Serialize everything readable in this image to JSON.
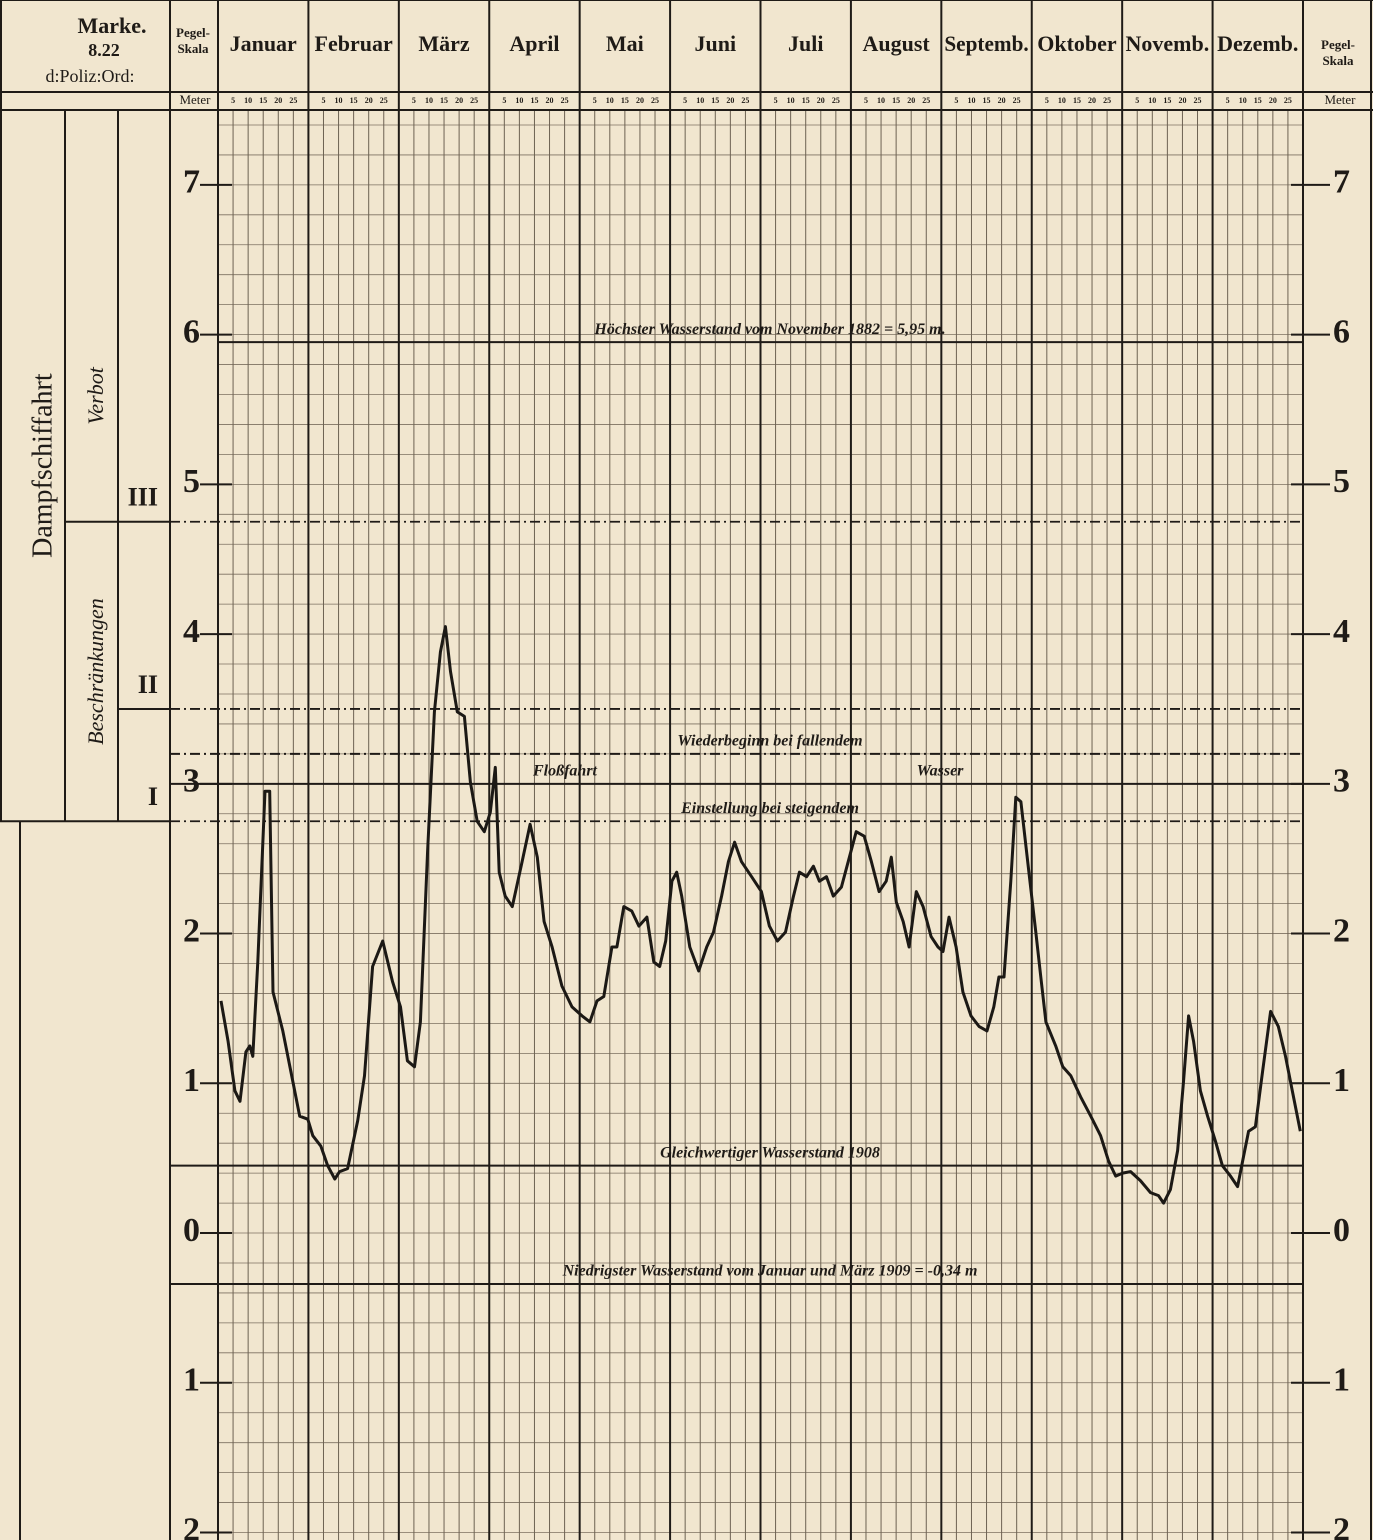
{
  "chart_data": {
    "type": "line",
    "marker": {
      "title": "Marke.",
      "number": "8.22",
      "note": "d:Poliz:Ord:"
    },
    "scale_header": {
      "line1": "Pegel-",
      "line2": "Skala",
      "unit": "Meter"
    },
    "categories": [
      "Januar",
      "Februar",
      "März",
      "April",
      "Mai",
      "Juni",
      "Juli",
      "August",
      "Septemb.",
      "Oktober",
      "Novemb.",
      "Dezemb."
    ],
    "day_ticks": [
      5,
      10,
      15,
      20,
      25
    ],
    "xlim": [
      0,
      365
    ],
    "ylim": [
      -2.05,
      7.5
    ],
    "yticks": [
      7,
      6,
      5,
      4,
      3,
      2,
      1,
      0,
      {
        "value": -1,
        "label": "1"
      },
      {
        "value": -2,
        "label": "2"
      }
    ],
    "grid": true,
    "grid_step": 0.2,
    "shipping": {
      "title": "Dampfschiffahrt",
      "zones": [
        "Verbot",
        "Beschränkungen"
      ],
      "line_style": "dashdot",
      "levels": [
        {
          "label": "III",
          "value": 4.75
        },
        {
          "label": "II",
          "value": 3.5
        },
        {
          "label": "I",
          "value": 2.75
        }
      ]
    },
    "reference_lines": [
      {
        "value": 5.95,
        "style": "solid",
        "label": "Höchster Wasserstand vom November 1882 = 5,95 m."
      },
      {
        "value": 3.2,
        "style": "dashdot",
        "label": "Wiederbeginn bei fallendem"
      },
      {
        "value": 3.0,
        "style": "solid",
        "label": "Floßfahrt",
        "label_right": "Wasser"
      },
      {
        "value": 2.75,
        "style": "none",
        "label": "Einstellung bei steigendem"
      },
      {
        "value": 0.45,
        "style": "solid",
        "label": "Gleichwertiger Wasserstand 1908"
      },
      {
        "value": -0.34,
        "style": "solid",
        "label": "Niedrigster Wasserstand vom Januar und März 1909 = -0,34 m"
      }
    ],
    "series": [
      {
        "color": "#1c1915",
        "x": [
          1,
          3.4,
          5.7,
          7.4,
          9.4,
          10.7,
          11.7,
          13.4,
          15.8,
          17.4,
          18.5,
          21.8,
          25.2,
          27.5,
          30.2,
          31.9,
          34.6,
          36.9,
          39.3,
          40.9,
          43.6,
          47,
          49.3,
          52,
          55.4,
          58.7,
          61.4,
          63.7,
          66.1,
          68.1,
          70.5,
          72.8,
          74.8,
          76.5,
          78.2,
          80.5,
          82.9,
          84.9,
          87.2,
          89.6,
          91.6,
          93.3,
          94.6,
          96.6,
          99,
          102.3,
          105,
          107.4,
          109.7,
          112.4,
          115.7,
          119.1,
          122.5,
          125.1,
          127.5,
          129.8,
          132.5,
          134.2,
          136.5,
          139.2,
          141.6,
          144.3,
          146.6,
          148.6,
          150.6,
          152.7,
          154.3,
          156,
          158.7,
          161.7,
          164.4,
          166.7,
          169.4,
          171.7,
          173.8,
          176.1,
          179.5,
          182.8,
          185.5,
          188.2,
          190.9,
          193.6,
          195.6,
          198,
          200.3,
          202.3,
          204.7,
          207,
          209.7,
          212.4,
          214.7,
          217.4,
          219.8,
          222.4,
          224.8,
          226.5,
          228.2,
          230.5,
          232.5,
          234.9,
          237.2,
          239.9,
          242.2,
          243.9,
          245.9,
          248.3,
          250.6,
          253.3,
          256,
          258.7,
          261,
          262.7,
          264.4,
          266.7,
          268.4,
          270.1,
          272.8,
          275.1,
          276.8,
          278.5,
          281.8,
          284.2,
          286.9,
          290.2,
          293.6,
          296.9,
          299.6,
          302,
          304.3,
          307,
          310.3,
          313.7,
          316.4,
          318.1,
          320.4,
          322.8,
          324.8,
          326.5,
          328.2,
          330.5,
          332.9,
          335.6,
          337.9,
          340.6,
          343,
          345,
          346.7,
          349,
          351.4,
          354.1,
          356.7,
          359.1,
          361.4,
          364.1
        ],
        "values": [
          1.55,
          1.28,
          0.95,
          0.88,
          1.21,
          1.25,
          1.18,
          1.81,
          2.95,
          2.95,
          1.61,
          1.35,
          1.01,
          0.78,
          0.76,
          0.65,
          0.58,
          0.45,
          0.36,
          0.41,
          0.43,
          0.75,
          1.05,
          1.78,
          1.95,
          1.68,
          1.51,
          1.15,
          1.11,
          1.41,
          2.55,
          3.48,
          3.88,
          4.05,
          3.75,
          3.48,
          3.45,
          3.01,
          2.75,
          2.68,
          2.81,
          3.11,
          2.41,
          2.25,
          2.18,
          2.48,
          2.73,
          2.51,
          2.08,
          1.91,
          1.65,
          1.51,
          1.45,
          1.41,
          1.55,
          1.58,
          1.91,
          1.91,
          2.18,
          2.15,
          2.05,
          2.11,
          1.81,
          1.78,
          1.95,
          2.35,
          2.41,
          2.25,
          1.91,
          1.75,
          1.91,
          2.01,
          2.25,
          2.48,
          2.61,
          2.48,
          2.38,
          2.28,
          2.05,
          1.95,
          2.01,
          2.25,
          2.41,
          2.38,
          2.45,
          2.35,
          2.38,
          2.25,
          2.31,
          2.51,
          2.68,
          2.65,
          2.48,
          2.28,
          2.35,
          2.51,
          2.21,
          2.08,
          1.91,
          2.28,
          2.18,
          1.98,
          1.91,
          1.88,
          2.11,
          1.91,
          1.61,
          1.45,
          1.38,
          1.35,
          1.51,
          1.71,
          1.71,
          2.35,
          2.91,
          2.88,
          2.41,
          2.01,
          1.71,
          1.41,
          1.25,
          1.11,
          1.05,
          0.91,
          0.78,
          0.65,
          0.48,
          0.38,
          0.4,
          0.41,
          0.35,
          0.27,
          0.25,
          0.2,
          0.29,
          0.55,
          1.01,
          1.45,
          1.28,
          0.95,
          0.78,
          0.61,
          0.45,
          0.38,
          0.31,
          0.51,
          0.68,
          0.71,
          1.08,
          1.48,
          1.38,
          1.18,
          0.95,
          0.68
        ]
      }
    ]
  }
}
